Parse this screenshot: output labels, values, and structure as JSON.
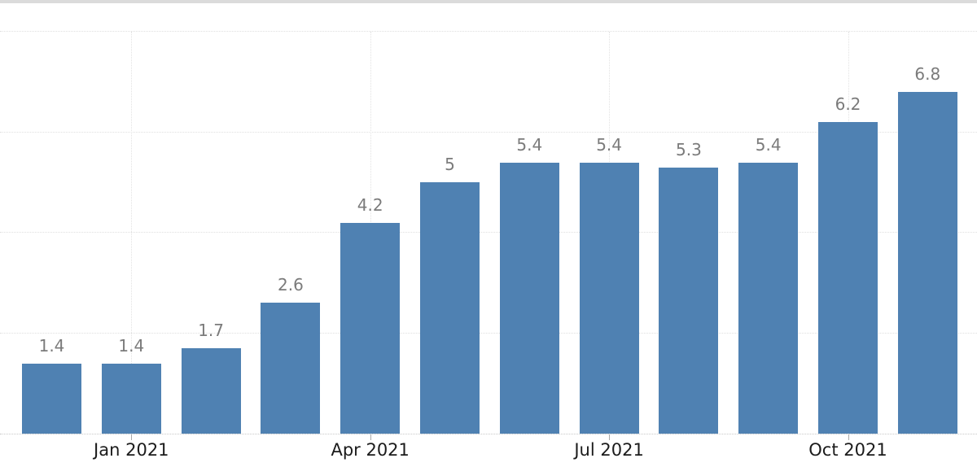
{
  "page": {
    "background": "#ffffff",
    "top_strip_color": "#dbdbdb"
  },
  "chart_data": {
    "type": "bar",
    "values": [
      1.4,
      1.4,
      1.7,
      2.6,
      4.2,
      5,
      5.4,
      5.4,
      5.3,
      5.4,
      6.2,
      6.8
    ],
    "value_labels": [
      "1.4",
      "1.4",
      "1.7",
      "2.6",
      "4.2",
      "5",
      "5.4",
      "5.4",
      "5.3",
      "5.4",
      "6.2",
      "6.8"
    ],
    "x_ticks": [
      {
        "label": "Jan 2021",
        "bar_index": 1
      },
      {
        "label": "Apr 2021",
        "bar_index": 4
      },
      {
        "label": "Jul 2021",
        "bar_index": 7
      },
      {
        "label": "Oct 2021",
        "bar_index": 10
      }
    ],
    "ylim": [
      0,
      8.65
    ],
    "gridline_values": [
      2,
      4,
      6,
      8
    ],
    "grid_style": "dotted",
    "legend": "none",
    "y_axis_labels": "none",
    "colors": {
      "bar": "#4f81b2",
      "value_label": "#7b7b7b",
      "x_tick_label": "#1b1b1b",
      "gridline": "#dfdfdf",
      "baseline": "#c8c8c8",
      "tick": "#a9a9a9"
    }
  }
}
